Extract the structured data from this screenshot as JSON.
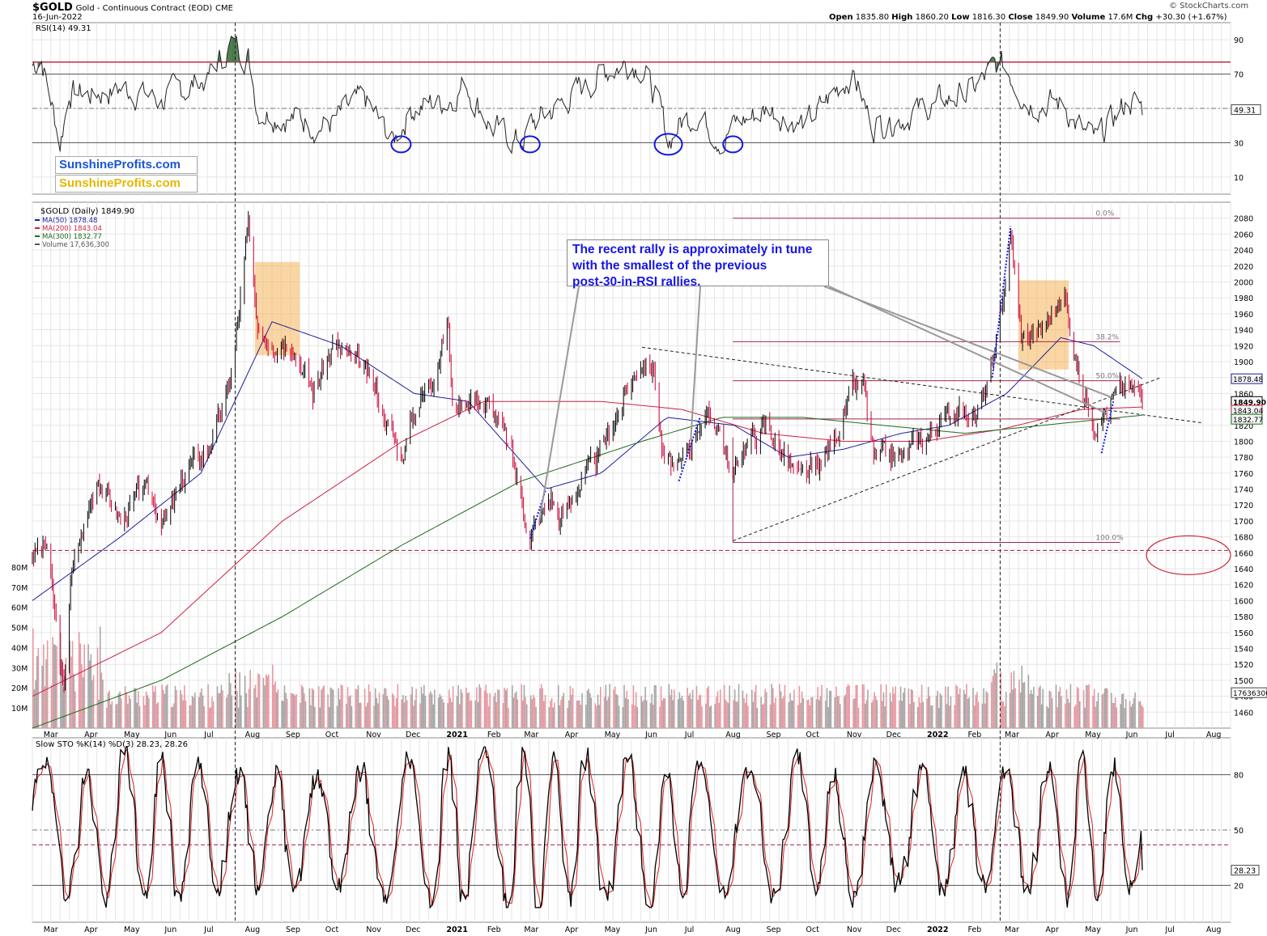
{
  "header": {
    "symbol": "$GOLD",
    "name": "Gold - Continuous Contract (EOD)",
    "exchange": "CME",
    "date": "16-Jun-2022",
    "open_label": "Open",
    "open": "1835.80",
    "high_label": "High",
    "high": "1860.20",
    "low_label": "Low",
    "low": "1816.30",
    "close_label": "Close",
    "close": "1849.90",
    "volume_label": "Volume",
    "volume": "17.6M",
    "chg_label": "Chg",
    "chg": "+30.30 (+1.67%)",
    "credit": "© StockCharts.com"
  },
  "logos": {
    "logo1": "SunshineProfits.com",
    "logo2": "SunshineProfits.com"
  },
  "annotation": {
    "line1": "The recent rally is approximately in tune",
    "line2": "with the smallest of the previous",
    "line3": "post-30-in-RSI rallies."
  },
  "colors": {
    "price_up": "#000000",
    "price_down": "#cc0033",
    "ma50": "#1e1ea0",
    "ma200": "#cc2244",
    "ma300": "#1e6b1e",
    "vol_up": "#a8a8a8",
    "vol_down": "#e89aa2",
    "highlight": "#f5b45a",
    "circle": "#1515e6",
    "rsi_fill": "#4a7a4a",
    "sto_k": "#000000",
    "sto_d": "#dd2222"
  },
  "chart_data": [
    {
      "type": "line",
      "panel": "RSI",
      "title": "RSI(14) 49.31",
      "ylim": [
        0,
        100
      ],
      "yticks": [
        10,
        30,
        50,
        70,
        90
      ],
      "reference_lines": [
        30,
        50,
        70,
        77
      ],
      "last_value": "49.31",
      "series": [
        {
          "name": "RSI(14)",
          "x": [
            "2020-02-24",
            "2020-03-02",
            "2020-03-09",
            "2020-03-16",
            "2020-03-23",
            "2020-04-06",
            "2020-05-04",
            "2020-06-01",
            "2020-07-06",
            "2020-07-27",
            "2020-08-06",
            "2020-08-13",
            "2020-09-07",
            "2020-10-05",
            "2020-11-02",
            "2020-11-24",
            "2020-12-07",
            "2021-01-04",
            "2021-01-18",
            "2021-02-08",
            "2021-03-01",
            "2021-03-08",
            "2021-04-05",
            "2021-05-03",
            "2021-05-24",
            "2021-06-01",
            "2021-06-14",
            "2021-06-21",
            "2021-06-28",
            "2021-07-12",
            "2021-08-02",
            "2021-08-09",
            "2021-09-06",
            "2021-10-04",
            "2021-11-08",
            "2021-11-22",
            "2021-12-13",
            "2022-01-03",
            "2022-02-07",
            "2022-02-28",
            "2022-03-08",
            "2022-03-21",
            "2022-04-18",
            "2022-05-02",
            "2022-05-13",
            "2022-05-23",
            "2022-06-06",
            "2022-06-16"
          ],
          "values": [
            75,
            80,
            55,
            30,
            60,
            58,
            62,
            55,
            68,
            90,
            80,
            50,
            45,
            40,
            55,
            30,
            50,
            55,
            65,
            38,
            30,
            40,
            55,
            72,
            78,
            75,
            50,
            30,
            40,
            48,
            32,
            40,
            50,
            40,
            72,
            40,
            45,
            50,
            60,
            76,
            70,
            55,
            52,
            35,
            30,
            42,
            55,
            49.31
          ]
        }
      ],
      "circles_at": [
        "2020-11-30",
        "2021-03-08",
        "2021-06-21",
        "2021-08-09"
      ]
    },
    {
      "type": "line",
      "panel": "Price",
      "title": "$GOLD (Daily) 1849.90",
      "ylim": [
        1440,
        2100
      ],
      "yticks": [
        1460,
        1480,
        1500,
        1520,
        1540,
        1560,
        1580,
        1600,
        1620,
        1640,
        1660,
        1680,
        1700,
        1720,
        1740,
        1760,
        1780,
        1800,
        1820,
        1840,
        1860,
        1880,
        1900,
        1920,
        1940,
        1960,
        1980,
        2000,
        2020,
        2040,
        2060,
        2080
      ],
      "legend": [
        "MA(50) 1878.48",
        "MA(200) 1843.04",
        "MA(300) 1832.77",
        "Volume 17,636,300"
      ],
      "value_tags": [
        "1878.48",
        "1849.90",
        "1843.04",
        "1832.77"
      ],
      "series": [
        {
          "name": "$GOLD",
          "x": [
            "2020-02-24",
            "2020-03-06",
            "2020-03-19",
            "2020-03-24",
            "2020-04-14",
            "2020-05-01",
            "2020-05-18",
            "2020-06-05",
            "2020-06-23",
            "2020-07-06",
            "2020-07-20",
            "2020-07-27",
            "2020-08-06",
            "2020-08-12",
            "2020-08-24",
            "2020-09-08",
            "2020-09-24",
            "2020-10-09",
            "2020-10-26",
            "2020-11-09",
            "2020-11-30",
            "2020-12-10",
            "2020-12-23",
            "2021-01-05",
            "2021-01-08",
            "2021-01-22",
            "2021-02-08",
            "2021-02-22",
            "2021-03-08",
            "2021-03-24",
            "2021-03-31",
            "2021-04-12",
            "2021-04-29",
            "2021-05-14",
            "2021-06-01",
            "2021-06-10",
            "2021-06-17",
            "2021-06-29",
            "2021-07-15",
            "2021-07-30",
            "2021-08-09",
            "2021-08-16",
            "2021-09-03",
            "2021-09-29",
            "2021-10-15",
            "2021-11-08",
            "2021-11-16",
            "2021-11-24",
            "2021-12-15",
            "2022-01-04",
            "2022-01-25",
            "2022-02-10",
            "2022-02-24",
            "2022-03-08",
            "2022-03-16",
            "2022-03-31",
            "2022-04-18",
            "2022-05-02",
            "2022-05-13",
            "2022-05-23",
            "2022-06-02",
            "2022-06-13",
            "2022-06-16"
          ],
          "values": [
            1660,
            1670,
            1480,
            1630,
            1760,
            1700,
            1740,
            1700,
            1770,
            1790,
            1850,
            1920,
            2070,
            1940,
            1930,
            1930,
            1860,
            1920,
            1900,
            1870,
            1780,
            1840,
            1880,
            1950,
            1840,
            1860,
            1840,
            1780,
            1680,
            1730,
            1700,
            1740,
            1780,
            1840,
            1905,
            1890,
            1780,
            1760,
            1830,
            1820,
            1750,
            1790,
            1820,
            1750,
            1770,
            1860,
            1870,
            1780,
            1780,
            1810,
            1840,
            1830,
            1900,
            2060,
            1930,
            1940,
            1980,
            1860,
            1820,
            1850,
            1870,
            1860,
            1849.9
          ]
        },
        {
          "name": "MA(50)",
          "x": [
            "2020-02-24",
            "2020-05-01",
            "2020-07-01",
            "2020-08-24",
            "2020-10-15",
            "2020-12-10",
            "2021-01-20",
            "2021-03-20",
            "2021-05-01",
            "2021-06-20",
            "2021-08-10",
            "2021-09-20",
            "2021-11-01",
            "2021-12-15",
            "2022-01-20",
            "2022-03-05",
            "2022-04-15",
            "2022-05-10",
            "2022-06-16"
          ],
          "values": [
            1600,
            1680,
            1760,
            1950,
            1920,
            1860,
            1850,
            1740,
            1760,
            1830,
            1820,
            1780,
            1790,
            1810,
            1820,
            1860,
            1930,
            1920,
            1878.48
          ]
        },
        {
          "name": "MA(200)",
          "x": [
            "2020-02-24",
            "2020-06-01",
            "2020-09-01",
            "2020-12-01",
            "2021-02-01",
            "2021-05-01",
            "2021-07-01",
            "2021-09-01",
            "2021-11-01",
            "2022-01-01",
            "2022-03-01",
            "2022-05-01",
            "2022-06-16"
          ],
          "values": [
            1480,
            1560,
            1700,
            1800,
            1850,
            1850,
            1840,
            1810,
            1800,
            1800,
            1815,
            1840,
            1843.04
          ]
        },
        {
          "name": "MA(300)",
          "x": [
            "2020-02-24",
            "2020-06-01",
            "2020-09-01",
            "2020-12-01",
            "2021-03-01",
            "2021-06-01",
            "2021-08-01",
            "2021-10-01",
            "2021-12-01",
            "2022-02-01",
            "2022-04-01",
            "2022-06-16"
          ],
          "values": [
            1440,
            1500,
            1580,
            1670,
            1750,
            1800,
            1830,
            1830,
            1820,
            1810,
            1820,
            1832.77
          ]
        }
      ],
      "fib_levels": [
        {
          "label": "0.0%",
          "value": 2080
        },
        {
          "label": "38.2%",
          "value": 1925
        },
        {
          "label": "50.0%",
          "value": 1876
        },
        {
          "label": "100.0%",
          "value": 1673
        }
      ],
      "reference_lines": [
        1663,
        1828
      ],
      "volume_ticks": [
        "10M",
        "20M",
        "30M",
        "40M",
        "50M",
        "60M",
        "70M",
        "80M"
      ],
      "volume_last": "17636300"
    },
    {
      "type": "line",
      "panel": "Stochastic",
      "title": "Slow STO %K(14) %D(3) 28.23, 28.26",
      "ylim": [
        0,
        100
      ],
      "yticks": [
        20,
        50,
        80
      ],
      "reference_lines": [
        20,
        42,
        50,
        80
      ],
      "last_value": "28.23",
      "series": [
        {
          "name": "%K",
          "last": "28.23"
        },
        {
          "name": "%D",
          "last": "28.26"
        }
      ]
    }
  ],
  "x_axis": {
    "labels": [
      "Mar",
      "Apr",
      "May",
      "Jun",
      "Jul",
      "Aug",
      "Sep",
      "Oct",
      "Nov",
      "Dec",
      "2021",
      "Feb",
      "Mar",
      "Apr",
      "May",
      "Jun",
      "Jul",
      "Aug",
      "Sep",
      "Oct",
      "Nov",
      "Dec",
      "2022",
      "Feb",
      "Mar",
      "Apr",
      "May",
      "Jun",
      "Jul",
      "Aug"
    ],
    "label_dates": [
      "2020-03-01",
      "2020-04-01",
      "2020-05-01",
      "2020-06-01",
      "2020-07-01",
      "2020-08-01",
      "2020-09-01",
      "2020-10-01",
      "2020-11-01",
      "2020-12-01",
      "2021-01-01",
      "2021-02-01",
      "2021-03-01",
      "2021-04-01",
      "2021-05-01",
      "2021-06-01",
      "2021-07-01",
      "2021-08-01",
      "2021-09-01",
      "2021-10-01",
      "2021-11-01",
      "2021-12-01",
      "2022-01-01",
      "2022-02-01",
      "2022-03-01",
      "2022-04-01",
      "2022-05-01",
      "2022-06-01",
      "2022-07-01",
      "2022-08-01"
    ],
    "start": "2020-02-24",
    "end": "2022-08-22",
    "vertical_markers": [
      "2020-07-27",
      "2022-02-28"
    ]
  }
}
